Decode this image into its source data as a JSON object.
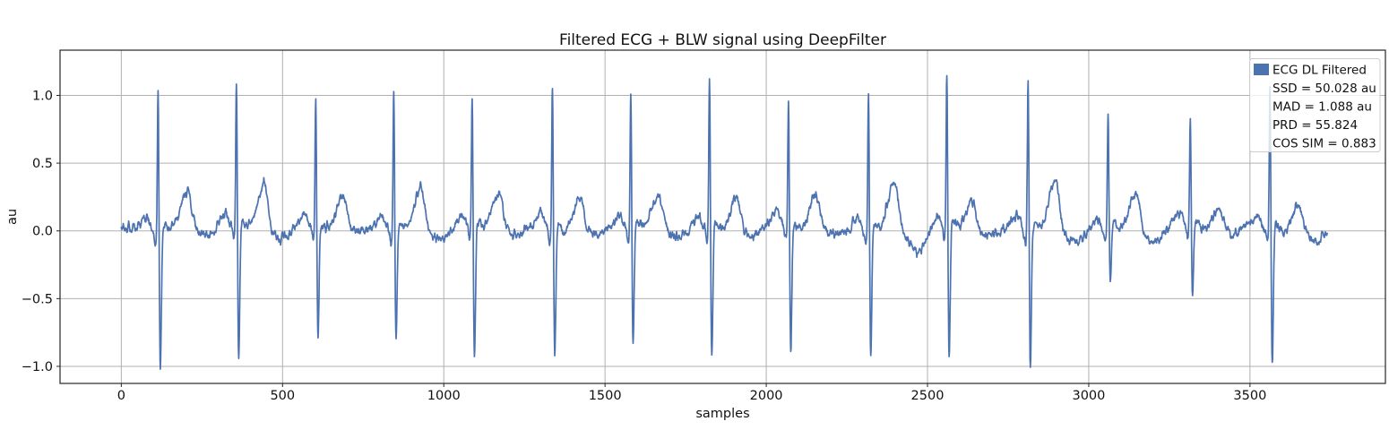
{
  "figure": {
    "title": "Filtered ECG + BLW signal using DeepFilter",
    "xlabel": "samples",
    "ylabel": "au",
    "background": "#ffffff"
  },
  "axes": {
    "xlim": [
      -190,
      3920
    ],
    "ylim": [
      -1.126,
      1.334
    ],
    "xticks": [
      0,
      500,
      1000,
      1500,
      2000,
      2500,
      3000,
      3500
    ],
    "xtick_labels": [
      "0",
      "500",
      "1000",
      "1500",
      "2000",
      "2500",
      "3000",
      "3500"
    ],
    "yticks": [
      1.0,
      0.5,
      0.0,
      -0.5,
      -1.0
    ],
    "ytick_labels": [
      "1.0",
      "0.5",
      "0.0",
      "−0.5",
      "−1.0"
    ],
    "grid": true,
    "grid_color": "#b0b0b0",
    "spine_color": "#262626",
    "tick_text_color": "#111111"
  },
  "legend": {
    "position": "upper right",
    "border_color": "#cccccc",
    "background": "rgba(255,255,255,0.8)",
    "entries": [
      {
        "label": "ECG DL Filtered",
        "swatch": "#4c72b0"
      },
      {
        "label": "SSD = 50.028 au"
      },
      {
        "label": "MAD = 1.088 au"
      },
      {
        "label": "PRD = 55.824"
      },
      {
        "label": "COS SIM = 0.883"
      }
    ]
  },
  "chart_data": {
    "type": "line",
    "title": "Filtered ECG + BLW signal using DeepFilter",
    "xlabel": "samples",
    "ylabel": "au",
    "xlim": [
      -190,
      3920
    ],
    "ylim": [
      -1.126,
      1.334
    ],
    "grid": true,
    "legend_position": "upper right",
    "metrics": {
      "SSD_au": 50.028,
      "MAD_au": 1.088,
      "PRD": 55.824,
      "COS_SIM": 0.883
    },
    "series": [
      {
        "name": "ECG DL Filtered",
        "color": "#4c72b0",
        "line_width": 1.7,
        "sample_start": 0,
        "sample_end": 3740,
        "baseline": 0.0,
        "noise": {
          "jitter_amp": 0.12,
          "seed": 20
        },
        "beats": [
          {
            "r": 114,
            "R": 1.1,
            "S": -1.0,
            "t": 205,
            "T": 0.27
          },
          {
            "r": 357,
            "R": 1.12,
            "S": -0.97,
            "t": 442,
            "T": 0.38
          },
          {
            "r": 603,
            "R": 1.06,
            "S": -0.78,
            "t": 686,
            "T": 0.26
          },
          {
            "r": 845,
            "R": 1.09,
            "S": -0.79,
            "t": 928,
            "T": 0.32
          },
          {
            "r": 1088,
            "R": 1.02,
            "S": -0.97,
            "t": 1172,
            "T": 0.28
          },
          {
            "r": 1337,
            "R": 1.1,
            "S": -0.9,
            "t": 1422,
            "T": 0.26
          },
          {
            "r": 1580,
            "R": 1.03,
            "S": -0.83,
            "t": 1666,
            "T": 0.25
          },
          {
            "r": 1824,
            "R": 1.16,
            "S": -0.92,
            "t": 1908,
            "T": 0.28
          },
          {
            "r": 2069,
            "R": 0.98,
            "S": -0.88,
            "t": 2154,
            "T": 0.28
          },
          {
            "r": 2317,
            "R": 1.08,
            "S": -0.92,
            "t": 2398,
            "T": 0.37,
            "dip": -0.17,
            "dipAt": 2470
          },
          {
            "r": 2560,
            "R": 1.17,
            "S": -0.97,
            "t": 2640,
            "T": 0.25
          },
          {
            "r": 2812,
            "R": 1.15,
            "S": -0.98,
            "t": 2896,
            "T": 0.38,
            "dip": -0.12,
            "dipAt": 2952
          },
          {
            "r": 3060,
            "R": 0.88,
            "S": -0.4,
            "t": 3146,
            "T": 0.29
          },
          {
            "r": 3315,
            "R": 0.83,
            "S": -0.49,
            "t": 3400,
            "T": 0.16
          },
          {
            "r": 3562,
            "R": 1.1,
            "S": -0.97,
            "t": 3648,
            "T": 0.18
          }
        ]
      }
    ]
  }
}
